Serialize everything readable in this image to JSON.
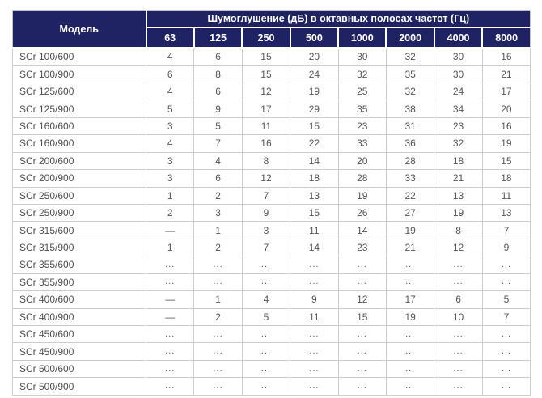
{
  "table": {
    "model_header": "Модель",
    "group_header": "Шумоглушение (дБ) в октавных полосах частот (Гц)",
    "freq_headers": [
      "63",
      "125",
      "250",
      "500",
      "1000",
      "2000",
      "4000",
      "8000"
    ],
    "rows": [
      {
        "model": "SCr 100/600",
        "values": [
          "4",
          "6",
          "15",
          "20",
          "30",
          "32",
          "30",
          "16"
        ]
      },
      {
        "model": "SCr 100/900",
        "values": [
          "6",
          "8",
          "15",
          "24",
          "32",
          "35",
          "30",
          "21"
        ]
      },
      {
        "model": "SCr 125/600",
        "values": [
          "4",
          "6",
          "12",
          "19",
          "25",
          "32",
          "24",
          "17"
        ]
      },
      {
        "model": "SCr 125/900",
        "values": [
          "5",
          "9",
          "17",
          "29",
          "35",
          "38",
          "34",
          "20"
        ]
      },
      {
        "model": "SCr 160/600",
        "values": [
          "3",
          "5",
          "11",
          "15",
          "23",
          "31",
          "23",
          "16"
        ]
      },
      {
        "model": "SCr 160/900",
        "values": [
          "4",
          "7",
          "16",
          "22",
          "33",
          "36",
          "32",
          "19"
        ]
      },
      {
        "model": "SCr 200/600",
        "values": [
          "3",
          "4",
          "8",
          "14",
          "20",
          "28",
          "18",
          "15"
        ]
      },
      {
        "model": "SCr 200/900",
        "values": [
          "3",
          "6",
          "12",
          "18",
          "28",
          "33",
          "21",
          "18"
        ]
      },
      {
        "model": "SCr 250/600",
        "values": [
          "1",
          "2",
          "7",
          "13",
          "19",
          "22",
          "13",
          "11"
        ]
      },
      {
        "model": "SCr 250/900",
        "values": [
          "2",
          "3",
          "9",
          "15",
          "26",
          "27",
          "19",
          "13"
        ]
      },
      {
        "model": "SCr 315/600",
        "values": [
          "—",
          "1",
          "3",
          "11",
          "14",
          "19",
          "8",
          "7"
        ]
      },
      {
        "model": "SCr 315/900",
        "values": [
          "1",
          "2",
          "7",
          "14",
          "23",
          "21",
          "12",
          "9"
        ]
      },
      {
        "model": "SCr 355/600",
        "values": [
          "...",
          "...",
          "...",
          "...",
          "...",
          "...",
          "...",
          "..."
        ]
      },
      {
        "model": "SCr 355/900",
        "values": [
          "...",
          "...",
          "...",
          "...",
          "...",
          "...",
          "...",
          "..."
        ]
      },
      {
        "model": "SCr 400/600",
        "values": [
          "—",
          "1",
          "4",
          "9",
          "12",
          "17",
          "6",
          "5"
        ]
      },
      {
        "model": "SCr 400/900",
        "values": [
          "—",
          "2",
          "5",
          "11",
          "15",
          "19",
          "10",
          "7"
        ]
      },
      {
        "model": "SCr 450/600",
        "values": [
          "...",
          "...",
          "...",
          "...",
          "...",
          "...",
          "...",
          "..."
        ]
      },
      {
        "model": "SCr 450/900",
        "values": [
          "...",
          "...",
          "...",
          "...",
          "...",
          "...",
          "...",
          "..."
        ]
      },
      {
        "model": "SCr 500/600",
        "values": [
          "...",
          "...",
          "...",
          "...",
          "...",
          "...",
          "...",
          "..."
        ]
      },
      {
        "model": "SCr 500/900",
        "values": [
          "...",
          "...",
          "...",
          "...",
          "...",
          "...",
          "...",
          "..."
        ]
      }
    ]
  },
  "colors": {
    "header_bg": "#1f2364",
    "header_text": "#ffffff",
    "body_text": "#565656",
    "border": "#ccccd2"
  }
}
